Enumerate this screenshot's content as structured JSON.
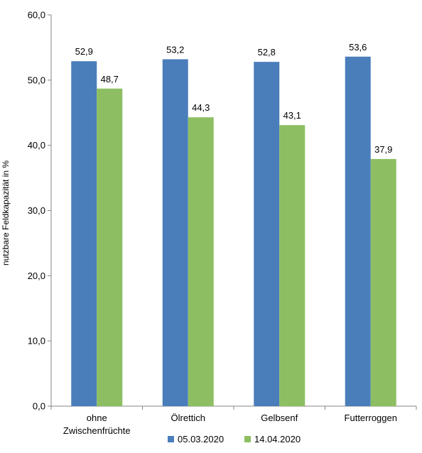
{
  "chart_data": {
    "type": "bar",
    "title": "",
    "xlabel": "",
    "ylabel": "nutzbare Feldkapazität in %",
    "ylim": [
      0,
      60
    ],
    "yticks": [
      "0,0",
      "10,0",
      "20,0",
      "30,0",
      "40,0",
      "50,0",
      "60,0"
    ],
    "categories": [
      [
        "ohne",
        "Zwischenfrüchte"
      ],
      [
        "Ölrettich"
      ],
      [
        "Gelbsenf"
      ],
      [
        "Futterroggen"
      ]
    ],
    "series": [
      {
        "name": "05.03.2020",
        "color": "#4A7EBB",
        "values": [
          52.9,
          53.2,
          52.8,
          53.6
        ],
        "labels": [
          "52,9",
          "53,2",
          "52,8",
          "53,6"
        ]
      },
      {
        "name": "14.04.2020",
        "color": "#8DBF62",
        "values": [
          48.7,
          44.3,
          43.1,
          37.9
        ],
        "labels": [
          "48,7",
          "44,3",
          "43,1",
          "37,9"
        ]
      }
    ],
    "grid": false,
    "legend_position": "bottom"
  }
}
